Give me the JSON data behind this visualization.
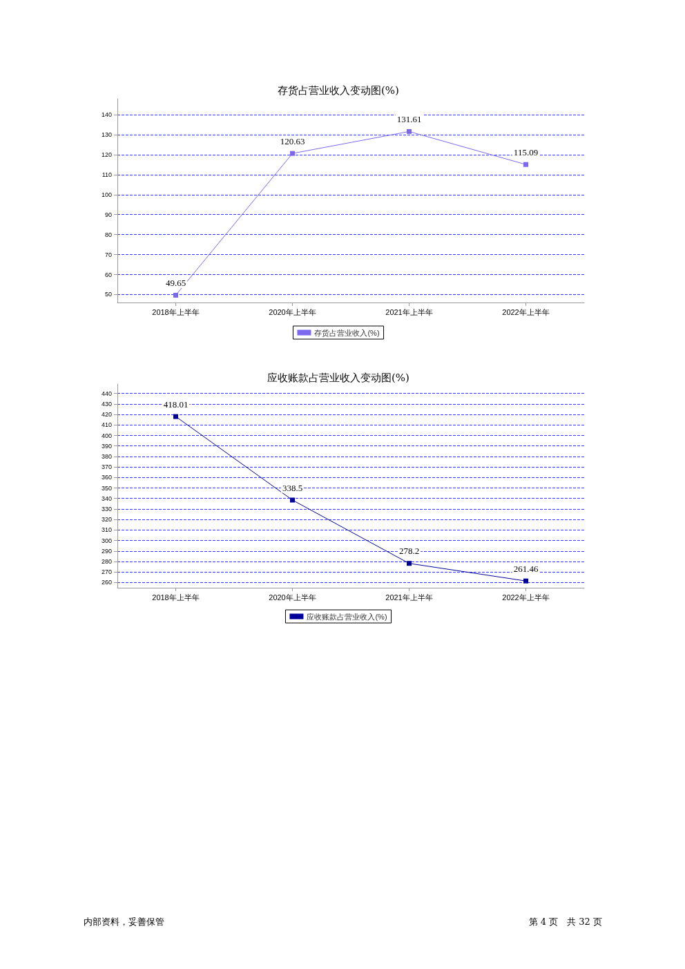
{
  "chart_data": [
    {
      "type": "line",
      "title": "存货占营业收入变动图(%)",
      "categories": [
        "2018年上半年",
        "2020年上半年",
        "2021年上半年",
        "2022年上半年"
      ],
      "series": [
        {
          "name": "存货占营业收入(%)",
          "color": "#7b68ee",
          "values": [
            49.65,
            120.63,
            131.61,
            115.09
          ]
        }
      ],
      "ylim": [
        46,
        148
      ],
      "yticks": [
        50,
        60,
        70,
        80,
        90,
        100,
        110,
        120,
        130,
        140
      ],
      "grid": "y",
      "legend": "bottom",
      "marker": "square",
      "line_style": "solid",
      "data_labels": true
    },
    {
      "type": "line",
      "title": "应收账款占营业收入变动图(%)",
      "categories": [
        "2018年上半年",
        "2020年上半年",
        "2021年上半年",
        "2022年上半年"
      ],
      "series": [
        {
          "name": "应收账款占营业收入(%)",
          "color": "#000099",
          "values": [
            418.01,
            338.5,
            278.2,
            261.46
          ]
        }
      ],
      "ylim": [
        255,
        449
      ],
      "yticks": [
        260,
        270,
        280,
        290,
        300,
        310,
        320,
        330,
        340,
        350,
        360,
        370,
        380,
        390,
        400,
        410,
        420,
        430,
        440
      ],
      "grid": "y",
      "legend": "bottom",
      "marker": "square",
      "line_style": "solid",
      "data_labels": true,
      "annotations": [
        "内部资料，妥善保管",
        "第 4 页　共 32 页"
      ]
    }
  ]
}
